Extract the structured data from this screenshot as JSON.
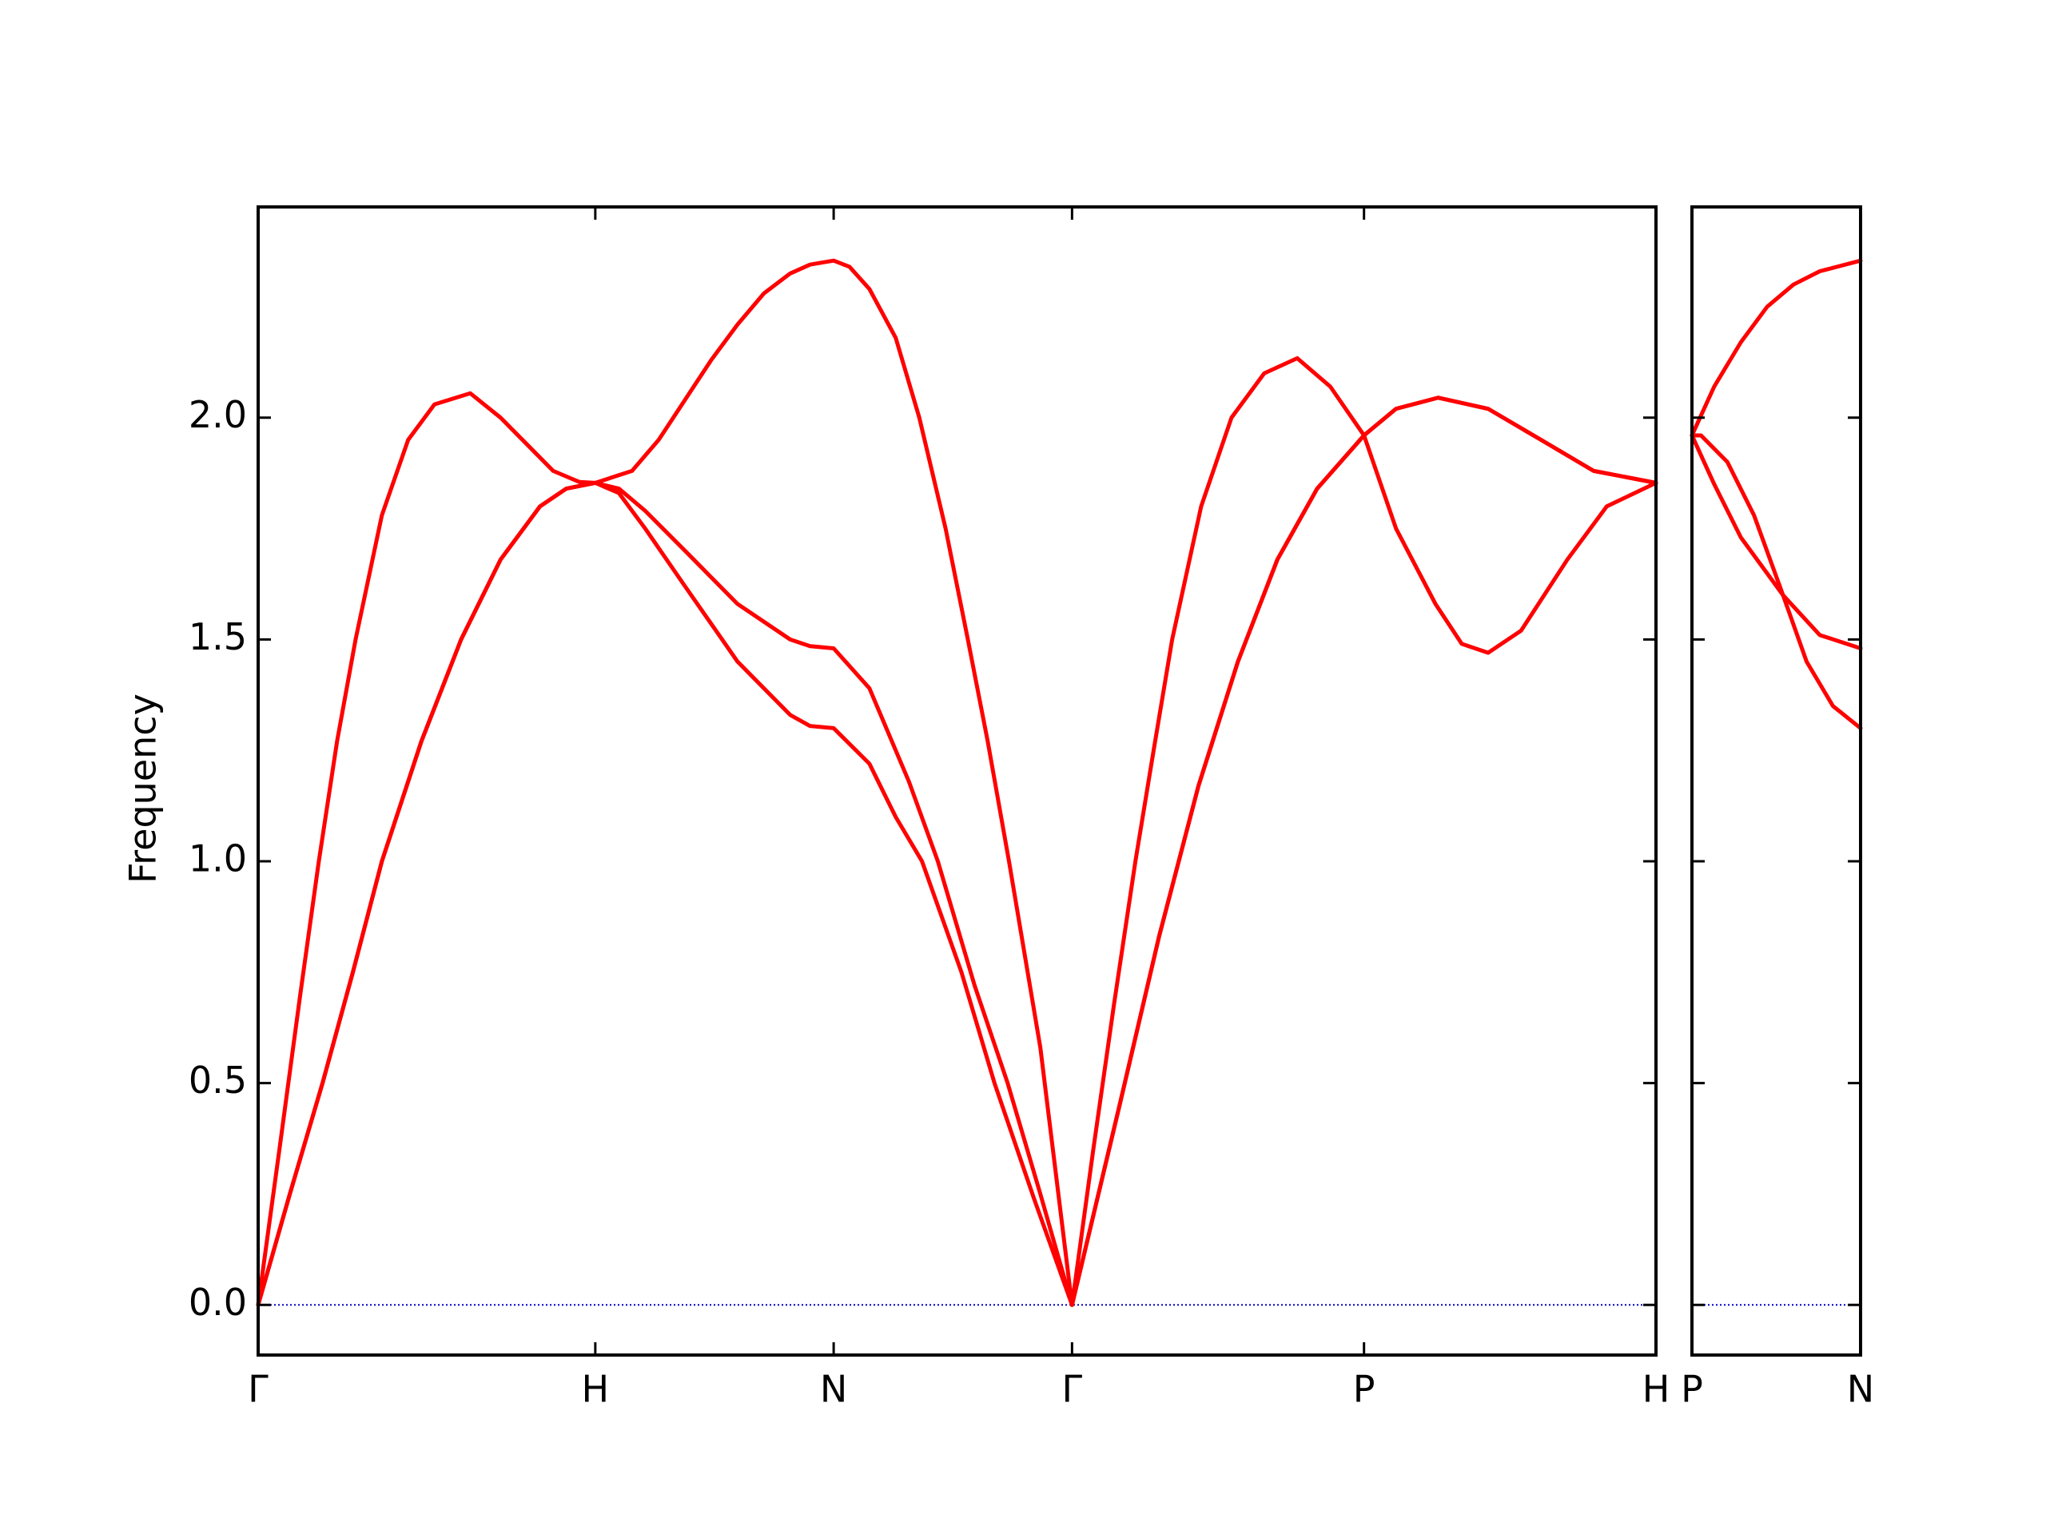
{
  "chart_data": [
    {
      "type": "line",
      "ylabel": "Frequency",
      "xlim": [
        0,
        4.146
      ],
      "ylim": [
        -0.113,
        2.475
      ],
      "xticks": [
        {
          "value": 0,
          "label": "Γ"
        },
        {
          "value": 1,
          "label": "H"
        },
        {
          "value": 1.707,
          "label": "N"
        },
        {
          "value": 2.414,
          "label": "Γ"
        },
        {
          "value": 3.28,
          "label": "P"
        },
        {
          "value": 4.146,
          "label": "H"
        }
      ],
      "yticks": [
        {
          "value": 0,
          "label": "0.0"
        },
        {
          "value": 0.5,
          "label": "0.5"
        },
        {
          "value": 1,
          "label": "1.0"
        },
        {
          "value": 1.5,
          "label": "1.5"
        },
        {
          "value": 2,
          "label": "2.0"
        }
      ],
      "hline": {
        "value": 0,
        "color": "#0000cd",
        "style": "dotted"
      },
      "series": [
        {
          "color": "#ff0000",
          "x": [
            0,
            0.063,
            0.125,
            0.18,
            0.234,
            0.289,
            0.367,
            0.445,
            0.523,
            0.629,
            0.719,
            0.797,
            0.875,
            0.953,
            1,
            1.109,
            1.188,
            1.266,
            1.344,
            1.422,
            1.5,
            1.578,
            1.637,
            1.707,
            1.754,
            1.813,
            1.891,
            1.961,
            2.039,
            2.105,
            2.164,
            2.227,
            2.32,
            2.414,
            2.477,
            2.539,
            2.602,
            2.656,
            2.711,
            2.797,
            2.887,
            2.984,
            3.082,
            3.18,
            3.28,
            3.375,
            3.492,
            3.57,
            3.648,
            3.746,
            3.883,
            4.0,
            4.146
          ],
          "values": [
            0,
            0.35,
            0.7,
            1.0,
            1.27,
            1.5,
            1.78,
            1.95,
            2.03,
            2.055,
            2.0,
            1.94,
            1.88,
            1.855,
            1.853,
            1.88,
            1.95,
            2.04,
            2.13,
            2.21,
            2.28,
            2.325,
            2.345,
            2.354,
            2.34,
            2.29,
            2.18,
            2.0,
            1.75,
            1.5,
            1.27,
            1.0,
            0.58,
            0,
            0.35,
            0.68,
            1.0,
            1.25,
            1.5,
            1.8,
            2.0,
            2.1,
            2.134,
            2.07,
            1.96,
            1.75,
            1.58,
            1.49,
            1.47,
            1.52,
            1.68,
            1.8,
            1.853
          ]
        },
        {
          "color": "#ff0000",
          "x": [
            0,
            0.094,
            0.191,
            0.281,
            0.367,
            0.484,
            0.602,
            0.719,
            0.836,
            0.914,
            1,
            1.07,
            1.148,
            1.266,
            1.422,
            1.578,
            1.637,
            1.707,
            1.813,
            1.93,
            2.016,
            2.125,
            2.223,
            2.32,
            2.414,
            2.555,
            2.672,
            2.789,
            2.906,
            3.023,
            3.141,
            3.28,
            3.375,
            3.5,
            3.648,
            3.805,
            3.961,
            4.146
          ],
          "values": [
            0,
            0.25,
            0.5,
            0.75,
            1.0,
            1.27,
            1.5,
            1.68,
            1.8,
            1.84,
            1.853,
            1.84,
            1.79,
            1.7,
            1.58,
            1.5,
            1.485,
            1.48,
            1.39,
            1.18,
            1.0,
            0.72,
            0.5,
            0.25,
            0,
            0.45,
            0.83,
            1.17,
            1.45,
            1.68,
            1.84,
            1.96,
            2.02,
            2.045,
            2.02,
            1.95,
            1.88,
            1.853
          ]
        },
        {
          "color": "#ff0000",
          "x": [
            0,
            0.094,
            0.191,
            0.281,
            0.367,
            0.484,
            0.602,
            0.719,
            0.836,
            0.914,
            1,
            1.07,
            1.148,
            1.266,
            1.422,
            1.578,
            1.637,
            1.707,
            1.813,
            1.891,
            1.969,
            2.086,
            2.184,
            2.301,
            2.414,
            2.555,
            2.672,
            2.789,
            2.906,
            3.023,
            3.141,
            3.28,
            3.375,
            3.5,
            3.648,
            3.805,
            3.961,
            4.146
          ],
          "values": [
            0,
            0.25,
            0.5,
            0.75,
            1.0,
            1.27,
            1.5,
            1.68,
            1.8,
            1.84,
            1.853,
            1.83,
            1.75,
            1.62,
            1.45,
            1.33,
            1.305,
            1.3,
            1.22,
            1.1,
            1.0,
            0.75,
            0.5,
            0.24,
            0,
            0.45,
            0.83,
            1.17,
            1.45,
            1.68,
            1.84,
            1.96,
            2.02,
            2.045,
            2.02,
            1.95,
            1.88,
            1.853
          ]
        }
      ]
    },
    {
      "type": "line",
      "xlim": [
        0,
        0.5
      ],
      "ylim": [
        -0.113,
        2.475
      ],
      "xticks": [
        {
          "value": 0,
          "label": "P"
        },
        {
          "value": 0.5,
          "label": "N"
        }
      ],
      "yticks": [
        0,
        0.5,
        1,
        1.5,
        2
      ],
      "show_ytick_labels": false,
      "hline": {
        "value": 0,
        "color": "#0000cd",
        "style": "dotted"
      },
      "series": [
        {
          "color": "#ff0000",
          "x": [
            0,
            0.066,
            0.145,
            0.223,
            0.301,
            0.379,
            0.5
          ],
          "values": [
            1.96,
            2.07,
            2.17,
            2.25,
            2.3,
            2.33,
            2.354
          ]
        },
        {
          "color": "#ff0000",
          "x": [
            0,
            0.027,
            0.105,
            0.184,
            0.27,
            0.34,
            0.418,
            0.5
          ],
          "values": [
            1.96,
            1.96,
            1.9,
            1.78,
            1.6,
            1.45,
            1.35,
            1.3
          ]
        },
        {
          "color": "#ff0000",
          "x": [
            0,
            0.066,
            0.145,
            0.27,
            0.379,
            0.5
          ],
          "values": [
            1.96,
            1.85,
            1.73,
            1.6,
            1.51,
            1.48
          ]
        }
      ]
    }
  ]
}
